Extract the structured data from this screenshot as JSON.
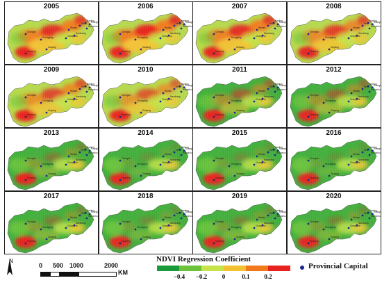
{
  "panels": [
    {
      "year": "2005",
      "hot": 0.95
    },
    {
      "year": "2006",
      "hot": 1.0
    },
    {
      "year": "2007",
      "hot": 0.95
    },
    {
      "year": "2008",
      "hot": 0.85
    },
    {
      "year": "2009",
      "hot": 0.8
    },
    {
      "year": "2010",
      "hot": 0.7
    },
    {
      "year": "2011",
      "hot": 0.55
    },
    {
      "year": "2012",
      "hot": 0.5
    },
    {
      "year": "2013",
      "hot": 0.35
    },
    {
      "year": "2014",
      "hot": 0.2
    },
    {
      "year": "2015",
      "hot": 0.25
    },
    {
      "year": "2016",
      "hot": 0.2
    },
    {
      "year": "2017",
      "hot": 0.35
    },
    {
      "year": "2018",
      "hot": 0.25
    },
    {
      "year": "2019",
      "hot": 0.3
    },
    {
      "year": "2020",
      "hot": 0.3
    }
  ],
  "north_label": "N",
  "scale": {
    "ticks": [
      "0",
      "500",
      "1000",
      "2000"
    ],
    "unit": "KM"
  },
  "legend": {
    "title": "NDVI Regression Coefficient",
    "ticks": [
      "−0.4",
      "−0.2",
      "0",
      "0.1",
      "0.2"
    ],
    "colors": [
      "#1a9a3a",
      "#6cc33a",
      "#c7e34a",
      "#f2c230",
      "#f07a1c",
      "#e6231e"
    ]
  },
  "capital_label": "Provincial Capital",
  "city_labels": [
    "Chengdu",
    "Chongqing",
    "Guiyang",
    "Kunming",
    "Changsha",
    "Wuhan",
    "Nanchang",
    "Hefei",
    "Nanjing",
    "Hangzhou",
    "Shanghai"
  ]
}
